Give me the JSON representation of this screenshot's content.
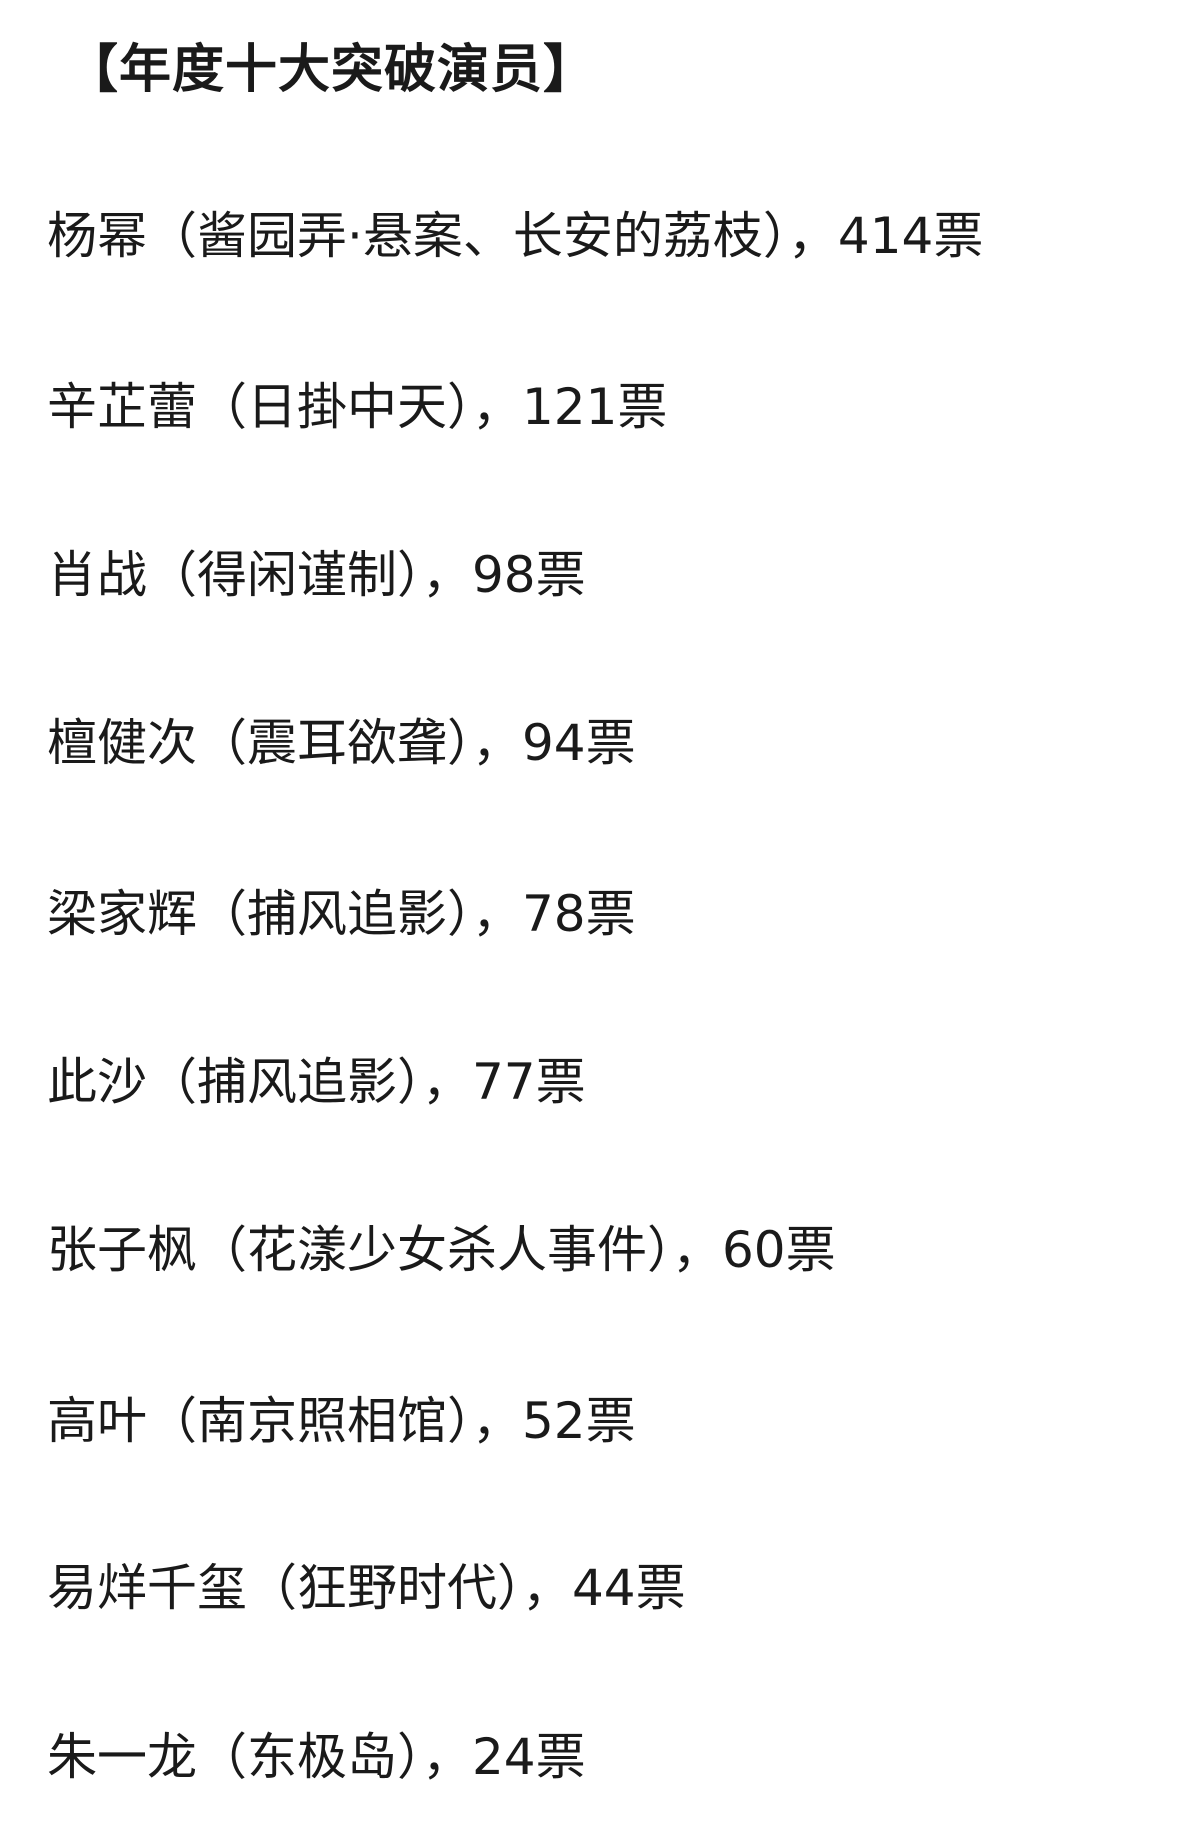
{
  "title": "【年度十大突破演员】",
  "entries": [
    {
      "text": "杨幂（酱园弄·悬案、长安的荔枝），414票"
    },
    {
      "text": "辛芷蕾（日掛中天），121票"
    },
    {
      "text": "肖战（得闲谨制），98票"
    },
    {
      "text": "檀健次（震耳欲聋），94票"
    },
    {
      "text": "梁家辉（捕风追影），78票"
    },
    {
      "text": "此沙（捕风追影），77票"
    },
    {
      "text": "张子枫（花漾少女杀人事件），60票"
    },
    {
      "text": "高叶（南京照相馆），52票"
    },
    {
      "text": "易烊千玺（狂野时代），44票"
    },
    {
      "text": "朱一龙（东极岛），24票"
    }
  ]
}
